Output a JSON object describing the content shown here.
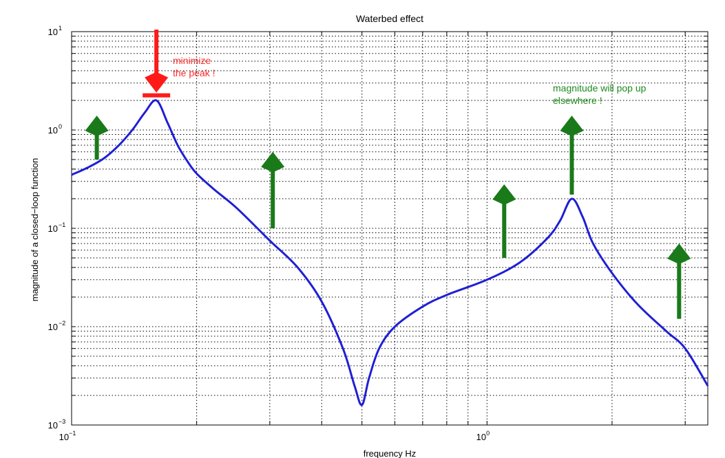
{
  "chart_data": {
    "type": "line",
    "title": "Waterbed effect",
    "xlabel": "frequency Hz",
    "ylabel": "magnitude of a closed−loop function",
    "x_scale": "log",
    "y_scale": "log",
    "xlim": [
      0.1,
      3.4
    ],
    "ylim": [
      0.001,
      10
    ],
    "grid": true,
    "x_ticks": [
      {
        "base": "10",
        "exp": "−1",
        "value": 0.1
      },
      {
        "base": "10",
        "exp": "0",
        "value": 1
      }
    ],
    "y_ticks": [
      {
        "base": "10",
        "exp": "1",
        "value": 10
      },
      {
        "base": "10",
        "exp": "0",
        "value": 1
      },
      {
        "base": "10",
        "exp": "−1",
        "value": 0.1
      },
      {
        "base": "10",
        "exp": "−2",
        "value": 0.01
      },
      {
        "base": "10",
        "exp": "−3",
        "value": 0.001
      }
    ],
    "series": [
      {
        "color": "#1f1fd6",
        "x": [
          0.1,
          0.11,
          0.12,
          0.13,
          0.14,
          0.15,
          0.16,
          0.17,
          0.18,
          0.19,
          0.2,
          0.22,
          0.25,
          0.3,
          0.35,
          0.4,
          0.45,
          0.48,
          0.5,
          0.52,
          0.55,
          0.6,
          0.7,
          0.8,
          1.0,
          1.2,
          1.4,
          1.5,
          1.6,
          1.7,
          1.8,
          2.0,
          2.3,
          2.7,
          3.0,
          3.4
        ],
        "y": [
          0.35,
          0.42,
          0.52,
          0.7,
          1.0,
          1.5,
          2.0,
          1.2,
          0.7,
          0.48,
          0.36,
          0.25,
          0.16,
          0.075,
          0.04,
          0.018,
          0.006,
          0.0025,
          0.0016,
          0.003,
          0.006,
          0.01,
          0.016,
          0.021,
          0.03,
          0.045,
          0.08,
          0.12,
          0.2,
          0.13,
          0.07,
          0.035,
          0.017,
          0.009,
          0.006,
          0.0025
        ]
      }
    ],
    "annotations": {
      "minimize": {
        "lines": [
          "minimize",
          "the peak !"
        ],
        "color": "#ff2a2a"
      },
      "popup": {
        "lines": [
          "magnitude will pop up",
          "elsewhere !"
        ],
        "color": "#1e8a1e"
      }
    },
    "arrows": {
      "red_down": {
        "x": 0.16,
        "y_from": 10.5,
        "y_to": 2.4,
        "color": "#ff1a1a"
      },
      "green_up": [
        {
          "x": 0.115,
          "y_from": 0.5,
          "y_to": 1.4,
          "color": "#1a7a1a"
        },
        {
          "x": 0.305,
          "y_from": 0.1,
          "y_to": 0.6,
          "color": "#1a7a1a"
        },
        {
          "x": 1.1,
          "y_from": 0.05,
          "y_to": 0.28,
          "color": "#1a7a1a"
        },
        {
          "x": 1.6,
          "y_from": 0.22,
          "y_to": 1.4,
          "color": "#1a7a1a"
        },
        {
          "x": 2.9,
          "y_from": 0.012,
          "y_to": 0.07,
          "color": "#1a7a1a"
        }
      ]
    }
  }
}
